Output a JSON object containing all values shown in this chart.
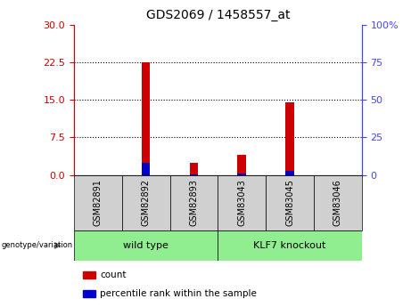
{
  "title": "GDS2069 / 1458557_at",
  "categories": [
    "GSM82891",
    "GSM82892",
    "GSM82893",
    "GSM83043",
    "GSM83045",
    "GSM83046"
  ],
  "count_values": [
    0,
    22.5,
    2.5,
    4.0,
    14.5,
    0
  ],
  "percentile_values": [
    0,
    8.0,
    0.5,
    1.2,
    3.0,
    0
  ],
  "left_yticks": [
    0,
    7.5,
    15,
    22.5,
    30
  ],
  "right_yticks": [
    0,
    25,
    50,
    75,
    100
  ],
  "left_ylim": [
    0,
    30
  ],
  "right_ylim": [
    0,
    100
  ],
  "left_ycolor": "#cc0000",
  "right_ycolor": "#4444ff",
  "bar_color_red": "#cc0000",
  "bar_color_blue": "#0000cc",
  "group1_label": "wild type",
  "group2_label": "KLF7 knockout",
  "group1_indices": [
    0,
    1,
    2
  ],
  "group2_indices": [
    3,
    4,
    5
  ],
  "group_box_color": "#90ee90",
  "sample_box_color": "#d0d0d0",
  "genotype_label": "genotype/variation",
  "legend_count": "count",
  "legend_percentile": "percentile rank within the sample",
  "bar_width": 0.18
}
